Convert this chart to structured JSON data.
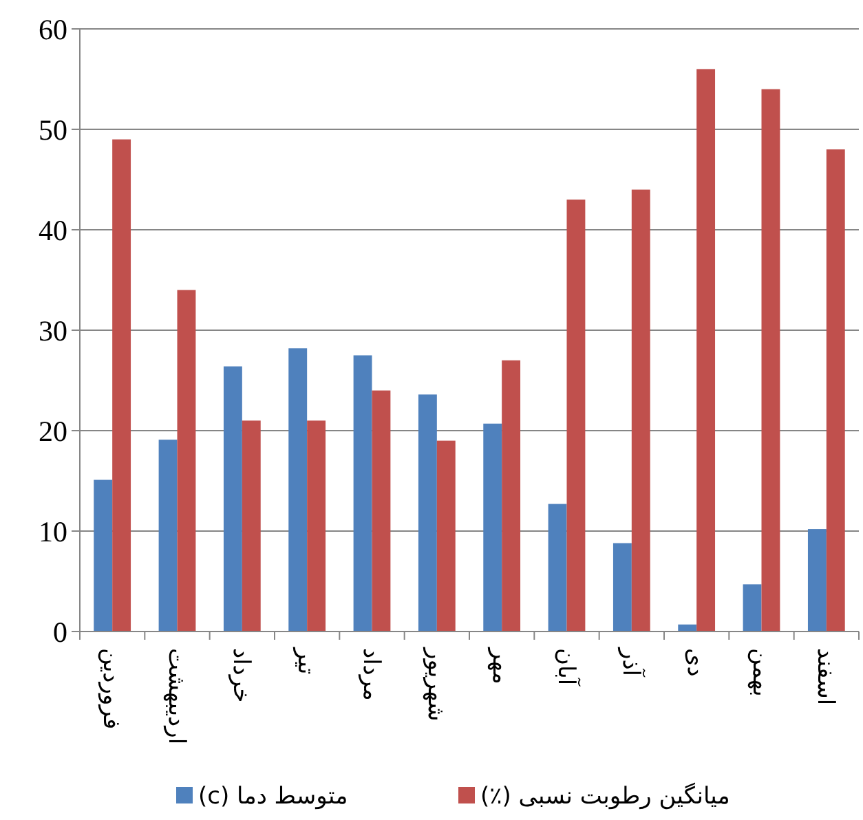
{
  "chart_data": {
    "type": "bar",
    "categories": [
      "فروردین",
      "اردیبهشت",
      "خرداد",
      "تیر",
      "مرداد",
      "شهریور",
      "مهر",
      "آبان",
      "آذر",
      "دی",
      "بهمن",
      "اسفند"
    ],
    "series": [
      {
        "name": "متوسط دما (c)",
        "color": "#4f81bd",
        "values": [
          15.1,
          19.1,
          26.4,
          28.2,
          27.5,
          23.6,
          20.7,
          12.7,
          8.8,
          0.7,
          4.7,
          10.2
        ]
      },
      {
        "name": "میانگین رطوبت نسبی (٪)",
        "color": "#c0504d",
        "values": [
          49,
          34,
          21,
          21,
          24,
          19,
          27,
          43,
          44,
          56,
          54,
          48
        ]
      }
    ],
    "ylim": [
      0,
      60
    ],
    "yticks": [
      0,
      10,
      20,
      30,
      40,
      50,
      60
    ],
    "grid": "y",
    "legend": "bottom"
  }
}
